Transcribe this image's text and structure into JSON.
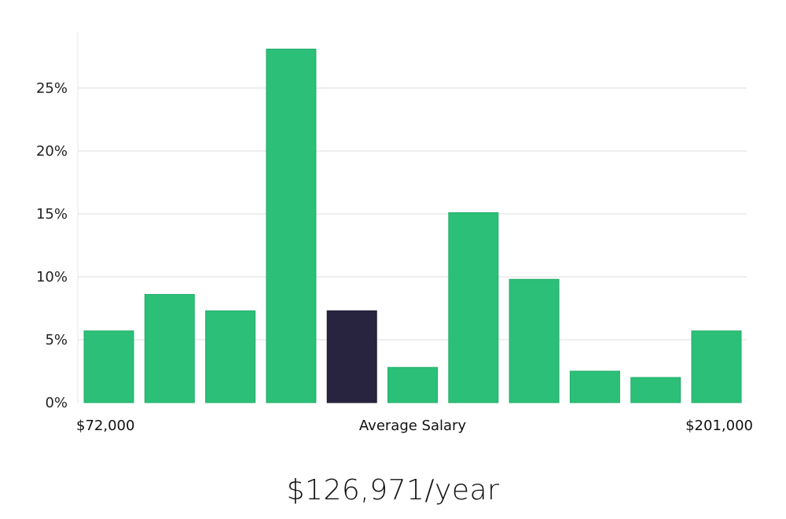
{
  "chart_data": {
    "type": "bar",
    "bins": [
      "1",
      "2",
      "3",
      "4",
      "5",
      "6",
      "7",
      "8",
      "9",
      "10",
      "11"
    ],
    "values": [
      5.7,
      8.6,
      7.3,
      28.1,
      7.3,
      2.8,
      15.1,
      9.8,
      2.5,
      2.0,
      5.7
    ],
    "highlight_index": 4,
    "ylim": [
      0,
      29.5
    ],
    "yticks": [
      "0%",
      "5%",
      "10%",
      "15%",
      "20%",
      "25%"
    ],
    "ytick_values": [
      0,
      5,
      10,
      15,
      20,
      25
    ],
    "grid": true,
    "colors": {
      "bar": "#2bbf77",
      "highlight": "#28243f",
      "grid": "#dddddd"
    },
    "x_labels": {
      "min": "$72,000",
      "center": "Average Salary",
      "max": "$201,000"
    }
  },
  "salary": {
    "headline": "$126,971/year"
  }
}
